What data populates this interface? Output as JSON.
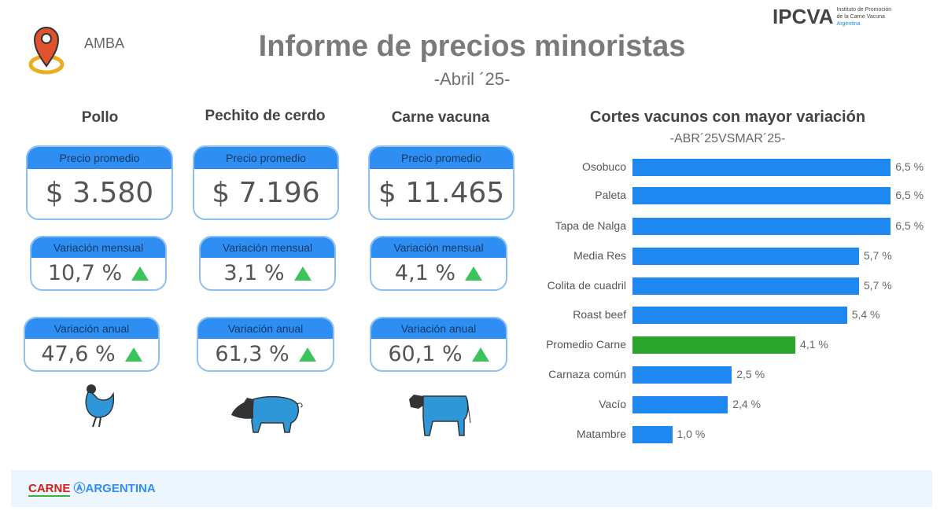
{
  "header": {
    "region": "AMBA",
    "title": "Informe de precios minoristas",
    "subtitle": "-Abril ´25-",
    "logo": {
      "name": "IPCVA",
      "tagline": [
        "Instituto de Promoción",
        "de la Carne Vacuna",
        "Argentina"
      ]
    }
  },
  "columns": [
    {
      "title": "Pollo",
      "price_label": "Precio promedio",
      "price": "$ 3.580",
      "monthly_label": "Variación mensual",
      "monthly": "10,7 %",
      "annual_label": "Variación anual",
      "annual": "47,6 %",
      "icon": "chicken-icon"
    },
    {
      "title": "Pechito de cerdo",
      "price_label": "Precio promedio",
      "price": "$ 7.196",
      "monthly_label": "Variación mensual",
      "monthly": "3,1 %",
      "annual_label": "Variación anual",
      "annual": "61,3 %",
      "icon": "pig-icon"
    },
    {
      "title": "Carne vacuna",
      "price_label": "Precio promedio",
      "price": "$ 11.465",
      "monthly_label": "Variación mensual",
      "monthly": "4,1 %",
      "annual_label": "Variación anual",
      "annual": "60,1 %",
      "icon": "cow-icon"
    }
  ],
  "colors": {
    "accent": "#2f8ef2",
    "bar": "#1e88f0",
    "highlight": "#2ca52c",
    "up": "#3cc45a"
  },
  "chart_data": {
    "type": "bar",
    "orientation": "horizontal",
    "title": "Cortes vacunos con mayor variación",
    "subtitle": "-ABR´25VSMAR´25-",
    "categories": [
      "Osobuco",
      "Paleta",
      "Tapa de Nalga",
      "Media Res",
      "Colita de cuadril",
      "Roast beef",
      "Promedio Carne",
      "Carnaza común",
      "Vacío",
      "Matambre"
    ],
    "values": [
      6.5,
      6.5,
      6.5,
      5.7,
      5.7,
      5.4,
      4.1,
      2.5,
      2.4,
      1.0
    ],
    "labels": [
      "6,5 %",
      "6,5 %",
      "6,5 %",
      "5,7 %",
      "5,7 %",
      "5,4 %",
      "4,1 %",
      "2,5 %",
      "2,4 %",
      "1,0 %"
    ],
    "highlight": "Promedio Carne",
    "grid": false
  },
  "footer": {
    "logo_left": "CARNE",
    "logo_right": "ARGENTINA"
  }
}
